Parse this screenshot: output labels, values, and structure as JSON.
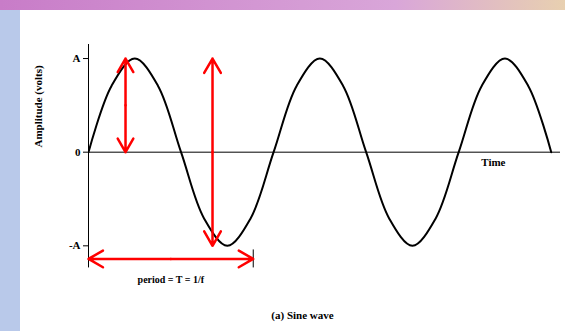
{
  "chart_data": {
    "type": "line",
    "ylabel": "Amplitude (volts)",
    "xlabel": "Time",
    "caption": "(a) Sine wave",
    "x": [
      0,
      0.125,
      0.25,
      0.375,
      0.5,
      0.625,
      0.75,
      0.875,
      1,
      1.125,
      1.25,
      1.375,
      1.5,
      1.625,
      1.75,
      1.875,
      2,
      2.125,
      2.25,
      2.375,
      2.5
    ],
    "values": [
      0,
      0.71,
      1,
      0.71,
      0,
      -0.71,
      -1,
      -0.71,
      0,
      0.71,
      1,
      0.71,
      0,
      -0.71,
      -1,
      -0.71,
      0,
      0.71,
      1,
      0.71,
      0
    ],
    "color": "#000000",
    "xlim": [
      0,
      2.55
    ],
    "ylim": [
      -1.05,
      1.15
    ],
    "yticks": [
      {
        "value": 1,
        "label": "A"
      },
      0,
      {
        "value": -1,
        "label": "-A"
      }
    ],
    "tick_labels": "y",
    "grid": false,
    "annotations": [
      {
        "x1": 0.2,
        "y1": 0,
        "x2": 0.2,
        "y2": 1,
        "color": "#ff0000"
      },
      {
        "x1": 0.67,
        "y1": -1,
        "x2": 0.67,
        "y2": 1,
        "color": "#ff0000"
      },
      {
        "x1": 0,
        "y1": -1.14,
        "x2": 0.89,
        "y2": -1.14,
        "color": "#ff0000",
        "text": "period = T = 1/f"
      }
    ]
  }
}
